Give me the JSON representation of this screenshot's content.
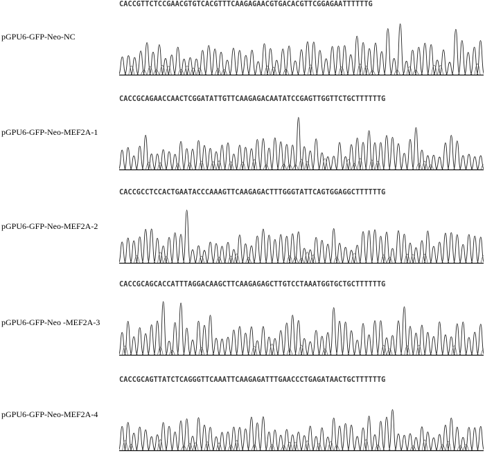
{
  "traces": [
    {
      "label": "pGPU6-GFP-Neo-NC",
      "sequence": "CACCGTTCTCCGAACGTGTCACGTTTCAAGAGAACGTGACACGTTCGGAGAATTTTTTG"
    },
    {
      "label": "pGPU6-GFP-Neo-MEF2A-1",
      "sequence": "CACCGCAGAACCAACTCGGATATTGTTCAAGAGACAATATCCGAGTTGGTTCTGCTTTTTTG"
    },
    {
      "label": "pGPU6-GFP-Neo-MEF2A-2",
      "sequence": "CACCGCCTCCACTGAATACCCAAAGTTCAAGAGACTTTGGGTATTCAGTGGAGGCTTTTTTG"
    },
    {
      "label": "pGPU6-GFP-Neo -MEF2A-3",
      "sequence": "CACCGCAGCACCATTTAGGACAAGCTTCAAGAGAGCTTGTCCTAAATGGTGCTGCTTTTTTG"
    },
    {
      "label": "pGPU6-GFP-Neo-MEF2A-4",
      "sequence": "CACCGCAGTTATCTCAGGGTTCAAATTCAAGAGATTTGAACCCTGAGATAACTGCTTTTTTG"
    }
  ]
}
